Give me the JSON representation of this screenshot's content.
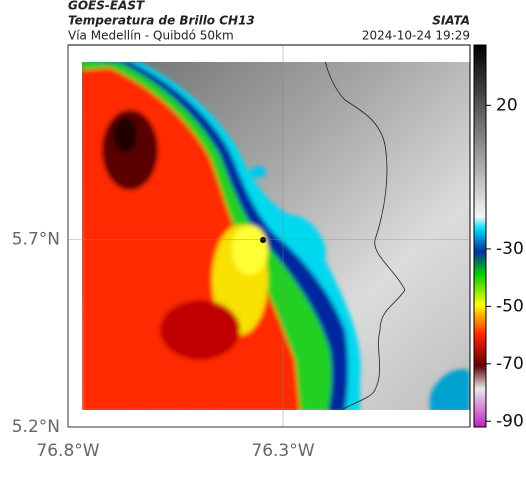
{
  "header": {
    "title": "GOES-EAST",
    "subtitle": "Temperatura de Brillo CH13",
    "route": "Vía Medellín - Quibdó 50km",
    "source": "SIATA",
    "datetime": "2024-10-24 19:29"
  },
  "map": {
    "xlim": [
      -76.8,
      -75.865
    ],
    "ylim": [
      5.2,
      6.22
    ],
    "xticks": [
      {
        "value": -76.8,
        "label": "76.8°W"
      },
      {
        "value": -76.3,
        "label": "76.3°W"
      }
    ],
    "yticks": [
      {
        "value": 5.7,
        "label": "5.7°N"
      },
      {
        "value": 5.2,
        "label": "5.2°N"
      }
    ]
  },
  "colorbar": {
    "clim": [
      -92,
      41
    ],
    "ticks": [
      20,
      -30,
      -50,
      -70,
      -90
    ]
  }
}
